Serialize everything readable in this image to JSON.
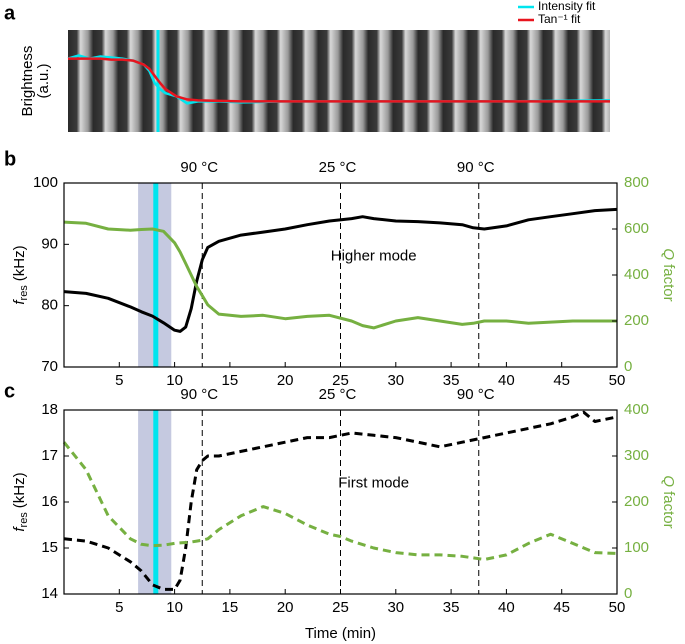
{
  "chart_data": [
    {
      "type": "line",
      "panel_label": "a",
      "y_label": [
        "Brightness",
        "(a.u.)"
      ],
      "legend": "upper right",
      "xlim": [
        0,
        50
      ],
      "ylim": [
        0,
        1
      ],
      "marker_x": 8.3,
      "marker_color": "#00e5ee",
      "x": [
        0,
        1,
        2,
        3,
        4,
        5,
        6,
        7,
        7.5,
        8,
        8.5,
        9,
        10,
        11,
        12,
        14,
        16,
        20,
        30,
        40,
        50
      ],
      "series": [
        {
          "name": "Intensity fit",
          "color": "#00e5ee",
          "values": [
            0.72,
            0.75,
            0.72,
            0.74,
            0.73,
            0.72,
            0.7,
            0.66,
            0.6,
            0.48,
            0.42,
            0.38,
            0.35,
            0.28,
            0.3,
            0.3,
            0.29,
            0.3,
            0.3,
            0.3,
            0.31
          ]
        },
        {
          "name": "Tan⁻¹ fit",
          "color": "#e8141e",
          "values": [
            0.72,
            0.72,
            0.72,
            0.72,
            0.71,
            0.71,
            0.7,
            0.66,
            0.62,
            0.55,
            0.48,
            0.42,
            0.35,
            0.32,
            0.31,
            0.305,
            0.3,
            0.3,
            0.3,
            0.3,
            0.3
          ]
        }
      ]
    },
    {
      "type": "line",
      "panel_label": "b",
      "note": "Higher mode",
      "y_label": {
        "symbol": "f",
        "subscript": "res",
        "unit": "(kHz)"
      },
      "y2_label": {
        "symbol": "Q",
        "text": "factor"
      },
      "xlim": [
        0,
        50
      ],
      "xticks": [
        5,
        10,
        15,
        20,
        25,
        30,
        35,
        40,
        45,
        50
      ],
      "ylim": [
        70,
        100
      ],
      "yticks": [
        70,
        80,
        90,
        100
      ],
      "y2lim": [
        0,
        800
      ],
      "y2ticks": [
        0,
        200,
        400,
        600,
        800
      ],
      "y2_color": "#76b041",
      "band": [
        6.7,
        9.7
      ],
      "band_color": "#c5c9e0",
      "marker_x": 8.3,
      "marker_color": "#00e5ee",
      "annotations": [
        {
          "x": 12.5,
          "label": "90 °C"
        },
        {
          "x": 25,
          "label": "25 °C"
        },
        {
          "x": 37.5,
          "label": "90 °C"
        }
      ],
      "x": [
        0,
        2,
        4,
        6,
        7,
        8,
        9,
        10,
        10.5,
        11,
        11.5,
        12,
        12.5,
        13,
        14,
        16,
        18,
        20,
        22,
        24,
        26,
        27,
        28,
        30,
        32,
        34,
        36,
        37,
        38,
        40,
        42,
        44,
        46,
        48,
        50
      ],
      "series": [
        {
          "color": "#000000",
          "line_style": "solid",
          "values": [
            82.3,
            82,
            81.2,
            79.8,
            79,
            78.3,
            77.2,
            76,
            75.8,
            76.5,
            79.5,
            84,
            87.5,
            89.5,
            90.5,
            91.5,
            92,
            92.5,
            93.2,
            93.8,
            94.2,
            94.5,
            94.2,
            93.8,
            93.7,
            93.5,
            93.2,
            92.7,
            92.5,
            93,
            94,
            94.5,
            95,
            95.5,
            95.7
          ]
        },
        {
          "color": "#76b041",
          "line_style": "solid",
          "axis": "y2",
          "values": [
            630,
            625,
            600,
            595,
            598,
            600,
            590,
            540,
            500,
            450,
            400,
            350,
            310,
            270,
            230,
            220,
            225,
            210,
            220,
            225,
            200,
            180,
            170,
            200,
            215,
            200,
            185,
            190,
            200,
            200,
            190,
            195,
            200,
            200,
            200
          ]
        }
      ]
    },
    {
      "type": "line",
      "panel_label": "c",
      "note": "First mode",
      "x_label": "Time (min)",
      "y_label": {
        "symbol": "f",
        "subscript": "res",
        "unit": "(kHz)"
      },
      "y2_label": {
        "symbol": "Q",
        "text": "factor"
      },
      "xlim": [
        0,
        50
      ],
      "xticks": [
        5,
        10,
        15,
        20,
        25,
        30,
        35,
        40,
        45,
        50
      ],
      "ylim": [
        14,
        18
      ],
      "yticks": [
        14,
        15,
        16,
        17,
        18
      ],
      "y2lim": [
        0,
        400
      ],
      "y2ticks": [
        0,
        100,
        200,
        300,
        400
      ],
      "y2_color": "#76b041",
      "band": [
        6.7,
        9.7
      ],
      "band_color": "#c5c9e0",
      "marker_x": 8.3,
      "marker_color": "#00e5ee",
      "annotations": [
        {
          "x": 12.5,
          "label": "90 °C"
        },
        {
          "x": 25,
          "label": "25 °C"
        },
        {
          "x": 37.5,
          "label": "90 °C"
        }
      ],
      "x": [
        0,
        2,
        4,
        6,
        7,
        8,
        9,
        10,
        10.5,
        11,
        11.5,
        12,
        12.5,
        13,
        14,
        16,
        18,
        20,
        22,
        24,
        25,
        26,
        28,
        30,
        32,
        34,
        36,
        38,
        40,
        42,
        44,
        46,
        47,
        48,
        50
      ],
      "series": [
        {
          "color": "#000000",
          "line_style": "dashed",
          "values": [
            15.2,
            15.15,
            15,
            14.7,
            14.5,
            14.2,
            14.1,
            14.1,
            14.3,
            15,
            16,
            16.7,
            16.9,
            17,
            17,
            17.1,
            17.2,
            17.3,
            17.4,
            17.4,
            17.45,
            17.5,
            17.45,
            17.4,
            17.3,
            17.2,
            17.3,
            17.4,
            17.5,
            17.6,
            17.7,
            17.85,
            17.95,
            17.75,
            17.85
          ]
        },
        {
          "color": "#76b041",
          "line_style": "dashed",
          "axis": "y2",
          "values": [
            330,
            270,
            170,
            120,
            108,
            105,
            106,
            110,
            111,
            112,
            113,
            115,
            117,
            120,
            140,
            170,
            190,
            175,
            150,
            130,
            125,
            115,
            100,
            90,
            85,
            85,
            82,
            75,
            85,
            110,
            130,
            110,
            100,
            90,
            88
          ]
        }
      ]
    }
  ]
}
